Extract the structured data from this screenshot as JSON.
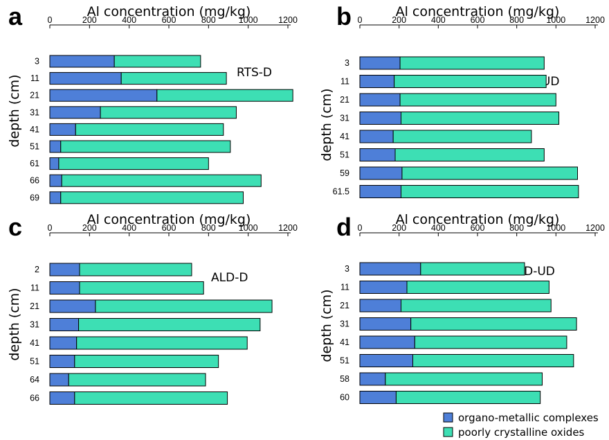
{
  "colors": {
    "organo": "#4e7fd8",
    "oxides": "#3ddfb4"
  },
  "legend": {
    "items": [
      {
        "name": "organo-metallic complexes",
        "color": "#4e7fd8"
      },
      {
        "name": "poorly crystalline oxides",
        "color": "#3ddfb4"
      }
    ]
  },
  "chart_data": [
    {
      "type": "bar",
      "orientation": "horizontal",
      "stacked": true,
      "panel": "a",
      "title": "Al concentration (mg/kg)",
      "site": "RTS-D",
      "xlabel": "Al concentration (mg/kg)",
      "ylabel": "depth (cm)",
      "xlim": [
        0,
        1200
      ],
      "xticks": [
        0,
        200,
        400,
        600,
        800,
        1000,
        1200
      ],
      "categories": [
        "3",
        "11",
        "21",
        "31",
        "41",
        "51",
        "61",
        "66",
        "69"
      ],
      "series": [
        {
          "name": "organo-metallic complexes",
          "values": [
            325,
            360,
            540,
            255,
            130,
            55,
            45,
            60,
            55
          ]
        },
        {
          "name": "poorly crystalline oxides",
          "values": [
            435,
            530,
            685,
            685,
            745,
            855,
            755,
            1005,
            920
          ]
        }
      ]
    },
    {
      "type": "bar",
      "orientation": "horizontal",
      "stacked": true,
      "panel": "b",
      "title": "Al concentration (mg/kg)",
      "site": "RTS-UD",
      "xlabel": "Al concentration (mg/kg)",
      "ylabel": "depth (cm)",
      "xlim": [
        0,
        1200
      ],
      "xticks": [
        0,
        200,
        400,
        600,
        800,
        1000,
        1200
      ],
      "categories": [
        "3",
        "11",
        "21",
        "31",
        "41",
        "51",
        "59",
        "61.5"
      ],
      "series": [
        {
          "name": "organo-metallic complexes",
          "values": [
            205,
            175,
            205,
            210,
            170,
            180,
            215,
            210
          ]
        },
        {
          "name": "poorly crystalline oxides",
          "values": [
            735,
            775,
            795,
            805,
            705,
            760,
            895,
            905
          ]
        }
      ]
    },
    {
      "type": "bar",
      "orientation": "horizontal",
      "stacked": true,
      "panel": "c",
      "title": "Al concentration (mg/kg)",
      "site": "ALD-D",
      "xlabel": "Al concentration (mg/kg)",
      "ylabel": "depth (cm)",
      "xlim": [
        0,
        1200
      ],
      "xticks": [
        0,
        200,
        400,
        600,
        800,
        1000,
        1200
      ],
      "categories": [
        "2",
        "11",
        "21",
        "31",
        "41",
        "51",
        "64",
        "66"
      ],
      "series": [
        {
          "name": "organo-metallic complexes",
          "values": [
            150,
            150,
            230,
            145,
            135,
            125,
            95,
            125
          ]
        },
        {
          "name": "poorly crystalline oxides",
          "values": [
            565,
            625,
            890,
            915,
            860,
            725,
            690,
            770
          ]
        }
      ]
    },
    {
      "type": "bar",
      "orientation": "horizontal",
      "stacked": true,
      "panel": "d",
      "title": "Al concentration (mg/kg)",
      "site": "ALD-UD",
      "xlabel": "Al concentration (mg/kg)",
      "ylabel": "depth (cm)",
      "xlim": [
        0,
        1200
      ],
      "xticks": [
        0,
        200,
        400,
        600,
        800,
        1000,
        1200
      ],
      "categories": [
        "3",
        "11",
        "21",
        "31",
        "41",
        "51",
        "58",
        "60"
      ],
      "series": [
        {
          "name": "organo-metallic complexes",
          "values": [
            310,
            240,
            210,
            260,
            280,
            270,
            130,
            185
          ]
        },
        {
          "name": "poorly crystalline oxides",
          "values": [
            530,
            725,
            765,
            845,
            775,
            820,
            800,
            735
          ]
        }
      ]
    }
  ]
}
